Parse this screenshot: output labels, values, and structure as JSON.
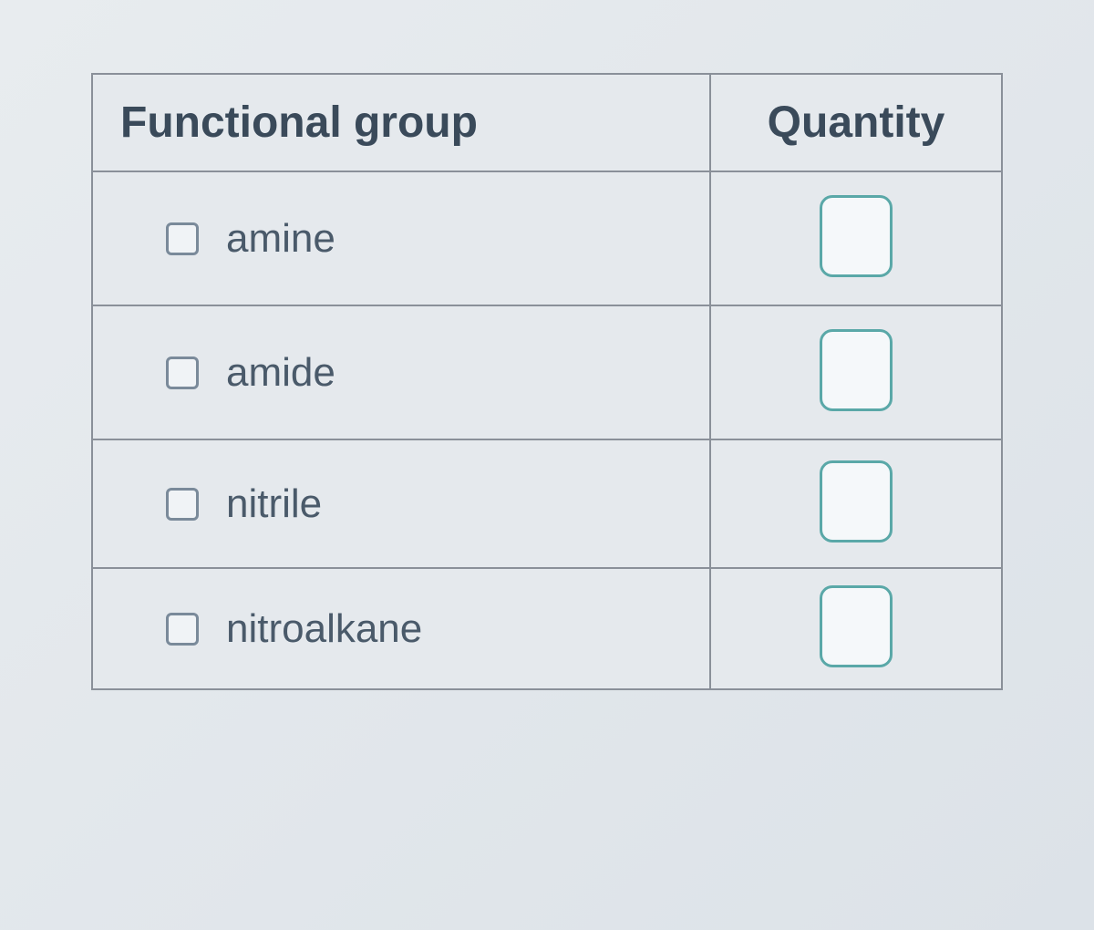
{
  "table": {
    "headers": {
      "functional_group": "Functional group",
      "quantity": "Quantity"
    },
    "rows": [
      {
        "label": "amine",
        "checked": false,
        "quantity": ""
      },
      {
        "label": "amide",
        "checked": false,
        "quantity": ""
      },
      {
        "label": "nitrile",
        "checked": false,
        "quantity": ""
      },
      {
        "label": "nitroalkane",
        "checked": false,
        "quantity": ""
      }
    ]
  },
  "styling": {
    "border_color": "#8a9099",
    "text_color": "#4a5a6a",
    "header_text_color": "#3a4a5a",
    "checkbox_border": "#7a8a9a",
    "input_border": "#5aa8a8",
    "background": "#e5e9ed",
    "header_fontsize": 48,
    "cell_fontsize": 44
  }
}
